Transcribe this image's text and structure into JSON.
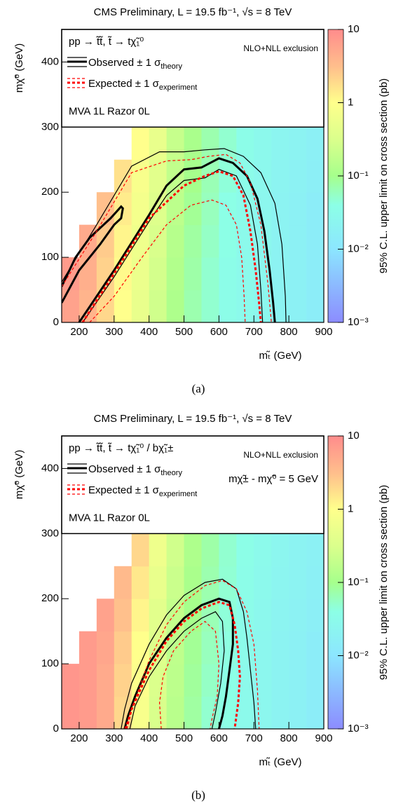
{
  "chart_data": [
    {
      "type": "heatmap",
      "header": "CMS Preliminary, L = 19.5 fb⁻¹, √s = 8 TeV",
      "process": "pp → t̃t̃, t̃ → tχ̃₁⁰",
      "note": "NLO+NLL exclusion",
      "analysis": "MVA 1L Razor 0L",
      "legend": [
        {
          "text": "Observed ± 1 σ",
          "sub": "theory"
        },
        {
          "text": "Expected ± 1 σ",
          "sub": "experiment"
        }
      ],
      "xlabel": "mₜ̃ (GeV)",
      "ylabel": "mχ̃⁰ (GeV)",
      "zlabel": "95% C.L. upper limit on cross section (pb)",
      "caption": "(a)",
      "xlim": [
        150,
        900
      ],
      "xticks": [
        200,
        300,
        400,
        500,
        600,
        700,
        800,
        900
      ],
      "ylim": [
        0,
        450
      ],
      "yticks": [
        0,
        100,
        200,
        300,
        400
      ],
      "zlim": [
        0.001,
        10
      ],
      "zlog": true,
      "zticks": [
        {
          "value": 0.001,
          "label": "10⁻³"
        },
        {
          "value": 0.01,
          "label": "10⁻²"
        },
        {
          "value": 0.1,
          "label": "10⁻¹"
        },
        1,
        10
      ],
      "colorscale": [
        [
          0,
          "#8c8cff"
        ],
        [
          0.25,
          "#8ce6ff"
        ],
        [
          0.4,
          "#8cffe6"
        ],
        [
          0.5,
          "#a6ff8c"
        ],
        [
          0.62,
          "#d9ff8c"
        ],
        [
          0.75,
          "#ffff8c"
        ],
        [
          0.87,
          "#ffc08c"
        ],
        [
          1,
          "#ff8c8c"
        ]
      ],
      "x_bins": [
        150,
        200,
        250,
        300,
        350,
        400,
        450,
        500,
        550,
        600,
        650,
        700,
        750,
        800,
        850,
        900
      ],
      "y_bins": [
        0,
        50,
        100,
        150,
        200,
        250,
        300
      ],
      "z": [
        [
          6,
          4,
          2,
          1,
          0.5,
          0.25,
          0.12,
          0.07,
          0.05,
          0.035,
          0.03,
          0.025,
          0.02,
          0.018,
          0.015
        ],
        [
          7,
          4.5,
          2.2,
          1.1,
          0.55,
          0.27,
          0.13,
          0.075,
          0.05,
          0.035,
          0.03,
          0.025,
          0.02,
          0.018,
          0.015
        ],
        [
          null,
          5,
          2.5,
          1.2,
          0.6,
          0.3,
          0.14,
          0.08,
          0.055,
          0.04,
          0.03,
          0.025,
          0.02,
          0.018,
          0.015
        ],
        [
          null,
          null,
          3,
          1.4,
          0.7,
          0.35,
          0.16,
          0.09,
          0.06,
          0.04,
          0.032,
          0.026,
          0.021,
          0.018,
          0.015
        ],
        [
          null,
          null,
          null,
          1.7,
          0.8,
          0.4,
          0.18,
          0.1,
          0.065,
          0.045,
          0.034,
          0.027,
          0.022,
          0.019,
          0.016
        ],
        [
          null,
          null,
          null,
          null,
          1,
          0.5,
          0.2,
          0.11,
          0.07,
          0.05,
          0.036,
          0.028,
          0.023,
          0.02,
          0.017
        ]
      ],
      "contours": [
        {
          "role": "central",
          "color": "#000000",
          "dashed": false,
          "x": [
            150,
            190,
            230,
            290,
            320,
            325,
            320,
            300,
            260,
            200,
            160,
            150
          ],
          "y": [
            55,
            100,
            130,
            160,
            178,
            175,
            160,
            150,
            120,
            80,
            40,
            30
          ]
        },
        {
          "role": "central",
          "color": "#000000",
          "dashed": false,
          "x": [
            200,
            300,
            400,
            450,
            500,
            550,
            600,
            640,
            680,
            710,
            730,
            745,
            755,
            760
          ],
          "y": [
            0,
            80,
            165,
            210,
            235,
            238,
            252,
            245,
            225,
            190,
            140,
            80,
            30,
            0
          ]
        },
        {
          "role": "band",
          "color": "#000000",
          "dashed": false,
          "x": [
            150,
            250,
            350,
            430,
            500,
            560,
            615,
            670,
            720,
            760,
            780,
            790,
            792
          ],
          "y": [
            62,
            150,
            240,
            262,
            262,
            265,
            267,
            255,
            230,
            183,
            120,
            40,
            0
          ]
        },
        {
          "role": "band",
          "color": "#000000",
          "dashed": false,
          "x": [
            210,
            300,
            400,
            450,
            500,
            560,
            600,
            650,
            690,
            710,
            720,
            725
          ],
          "y": [
            0,
            70,
            155,
            195,
            218,
            222,
            235,
            225,
            180,
            120,
            50,
            0
          ]
        },
        {
          "role": "central",
          "color": "#ff0000",
          "dashed": true,
          "x": [
            210,
            300,
            400,
            500,
            560,
            600,
            640,
            670,
            690,
            705,
            715,
            720
          ],
          "y": [
            0,
            75,
            160,
            210,
            225,
            232,
            225,
            195,
            140,
            80,
            30,
            0
          ]
        },
        {
          "role": "band",
          "color": "#ff0000",
          "dashed": true,
          "x": [
            150,
            250,
            350,
            450,
            520,
            570,
            620,
            660,
            690,
            720,
            740,
            750
          ],
          "y": [
            55,
            140,
            230,
            248,
            250,
            255,
            258,
            245,
            215,
            150,
            60,
            0
          ]
        },
        {
          "role": "band",
          "color": "#ff0000",
          "dashed": true,
          "x": [
            230,
            300,
            380,
            450,
            520,
            580,
            620,
            650,
            665,
            672,
            675
          ],
          "y": [
            0,
            40,
            100,
            150,
            180,
            188,
            180,
            150,
            100,
            40,
            0
          ]
        }
      ]
    },
    {
      "type": "heatmap",
      "header": "CMS Preliminary, L = 19.5 fb⁻¹, √s = 8 TeV",
      "process": "pp → t̃t̃, t̃ → tχ̃₁⁰ / bχ̃₁±",
      "note": "NLO+NLL exclusion",
      "mass_note": "mχ̃± - mχ̃⁰ = 5 GeV",
      "analysis": "MVA 1L Razor 0L",
      "legend": [
        {
          "text": "Observed ± 1 σ",
          "sub": "theory"
        },
        {
          "text": "Expected ± 1 σ",
          "sub": "experiment"
        }
      ],
      "xlabel": "mₜ̃ (GeV)",
      "ylabel": "mχ̃⁰ (GeV)",
      "zlabel": "95% C.L. upper limit on cross section (pb)",
      "caption": "(b)",
      "xlim": [
        150,
        900
      ],
      "xticks": [
        200,
        300,
        400,
        500,
        600,
        700,
        800,
        900
      ],
      "ylim": [
        0,
        450
      ],
      "yticks": [
        0,
        100,
        200,
        300,
        400
      ],
      "zlim": [
        0.001,
        10
      ],
      "zlog": true,
      "zticks": [
        {
          "value": 0.001,
          "label": "10⁻³"
        },
        {
          "value": 0.01,
          "label": "10⁻²"
        },
        {
          "value": 0.1,
          "label": "10⁻¹"
        },
        1,
        10
      ],
      "colorscale": [
        [
          0,
          "#8c8cff"
        ],
        [
          0.25,
          "#8ce6ff"
        ],
        [
          0.4,
          "#8cffe6"
        ],
        [
          0.5,
          "#a6ff8c"
        ],
        [
          0.62,
          "#d9ff8c"
        ],
        [
          0.75,
          "#ffff8c"
        ],
        [
          0.87,
          "#ffc08c"
        ],
        [
          1,
          "#ff8c8c"
        ]
      ],
      "x_bins": [
        150,
        200,
        250,
        300,
        350,
        400,
        450,
        500,
        550,
        600,
        650,
        700,
        750,
        800,
        850,
        900
      ],
      "y_bins": [
        0,
        50,
        100,
        150,
        200,
        250,
        300
      ],
      "z": [
        [
          8,
          7,
          5,
          2,
          0.8,
          0.3,
          0.15,
          0.08,
          0.05,
          0.04,
          0.03,
          0.025,
          0.02,
          0.018,
          0.015
        ],
        [
          8,
          7,
          5,
          2.2,
          0.9,
          0.32,
          0.16,
          0.085,
          0.055,
          0.04,
          0.03,
          0.025,
          0.02,
          0.018,
          0.015
        ],
        [
          null,
          7,
          5.5,
          2.5,
          1,
          0.35,
          0.17,
          0.09,
          0.06,
          0.042,
          0.032,
          0.026,
          0.021,
          0.018,
          0.015
        ],
        [
          null,
          null,
          6,
          3,
          1.2,
          0.4,
          0.19,
          0.1,
          0.065,
          0.045,
          0.034,
          0.027,
          0.022,
          0.019,
          0.016
        ],
        [
          null,
          null,
          null,
          3.5,
          1.5,
          0.5,
          0.22,
          0.11,
          0.07,
          0.048,
          0.036,
          0.028,
          0.023,
          0.02,
          0.017
        ],
        [
          null,
          null,
          null,
          null,
          2,
          0.6,
          0.25,
          0.12,
          0.075,
          0.05,
          0.038,
          0.03,
          0.024,
          0.021,
          0.018
        ]
      ],
      "contours": [
        {
          "role": "central",
          "color": "#000000",
          "dashed": false,
          "x": [
            330,
            340,
            360,
            400,
            450,
            500,
            550,
            600,
            630,
            640,
            640,
            630,
            620,
            610,
            600
          ],
          "y": [
            0,
            20,
            50,
            100,
            140,
            170,
            190,
            200,
            195,
            170,
            130,
            90,
            50,
            20,
            0
          ]
        },
        {
          "role": "band",
          "color": "#000000",
          "dashed": false,
          "x": [
            320,
            330,
            350,
            400,
            450,
            500,
            560,
            610,
            650,
            670,
            680,
            690,
            700,
            705
          ],
          "y": [
            0,
            30,
            70,
            130,
            175,
            205,
            225,
            230,
            215,
            180,
            140,
            90,
            40,
            0
          ]
        },
        {
          "role": "band",
          "color": "#000000",
          "dashed": false,
          "x": [
            345,
            360,
            400,
            450,
            500,
            550,
            590,
            610,
            615,
            605,
            590,
            580
          ],
          "y": [
            0,
            35,
            80,
            120,
            150,
            170,
            180,
            165,
            120,
            70,
            25,
            0
          ]
        },
        {
          "role": "central",
          "color": "#ff0000",
          "dashed": true,
          "x": [
            335,
            350,
            400,
            450,
            500,
            550,
            600,
            630,
            645,
            655,
            660,
            655,
            645
          ],
          "y": [
            0,
            30,
            90,
            135,
            165,
            185,
            195,
            190,
            160,
            120,
            80,
            40,
            0
          ]
        },
        {
          "role": "band",
          "color": "#ff0000",
          "dashed": true,
          "x": [
            330,
            360,
            400,
            450,
            500,
            560,
            610,
            650,
            680,
            700,
            710,
            715
          ],
          "y": [
            0,
            45,
            105,
            160,
            195,
            220,
            228,
            215,
            180,
            130,
            60,
            0
          ]
        },
        {
          "role": "band",
          "color": "#ff0000",
          "dashed": true,
          "x": [
            435,
            430,
            440,
            470,
            520,
            560,
            590,
            600,
            595,
            580,
            575
          ],
          "y": [
            0,
            40,
            80,
            120,
            150,
            165,
            150,
            100,
            50,
            15,
            0
          ]
        }
      ]
    }
  ]
}
